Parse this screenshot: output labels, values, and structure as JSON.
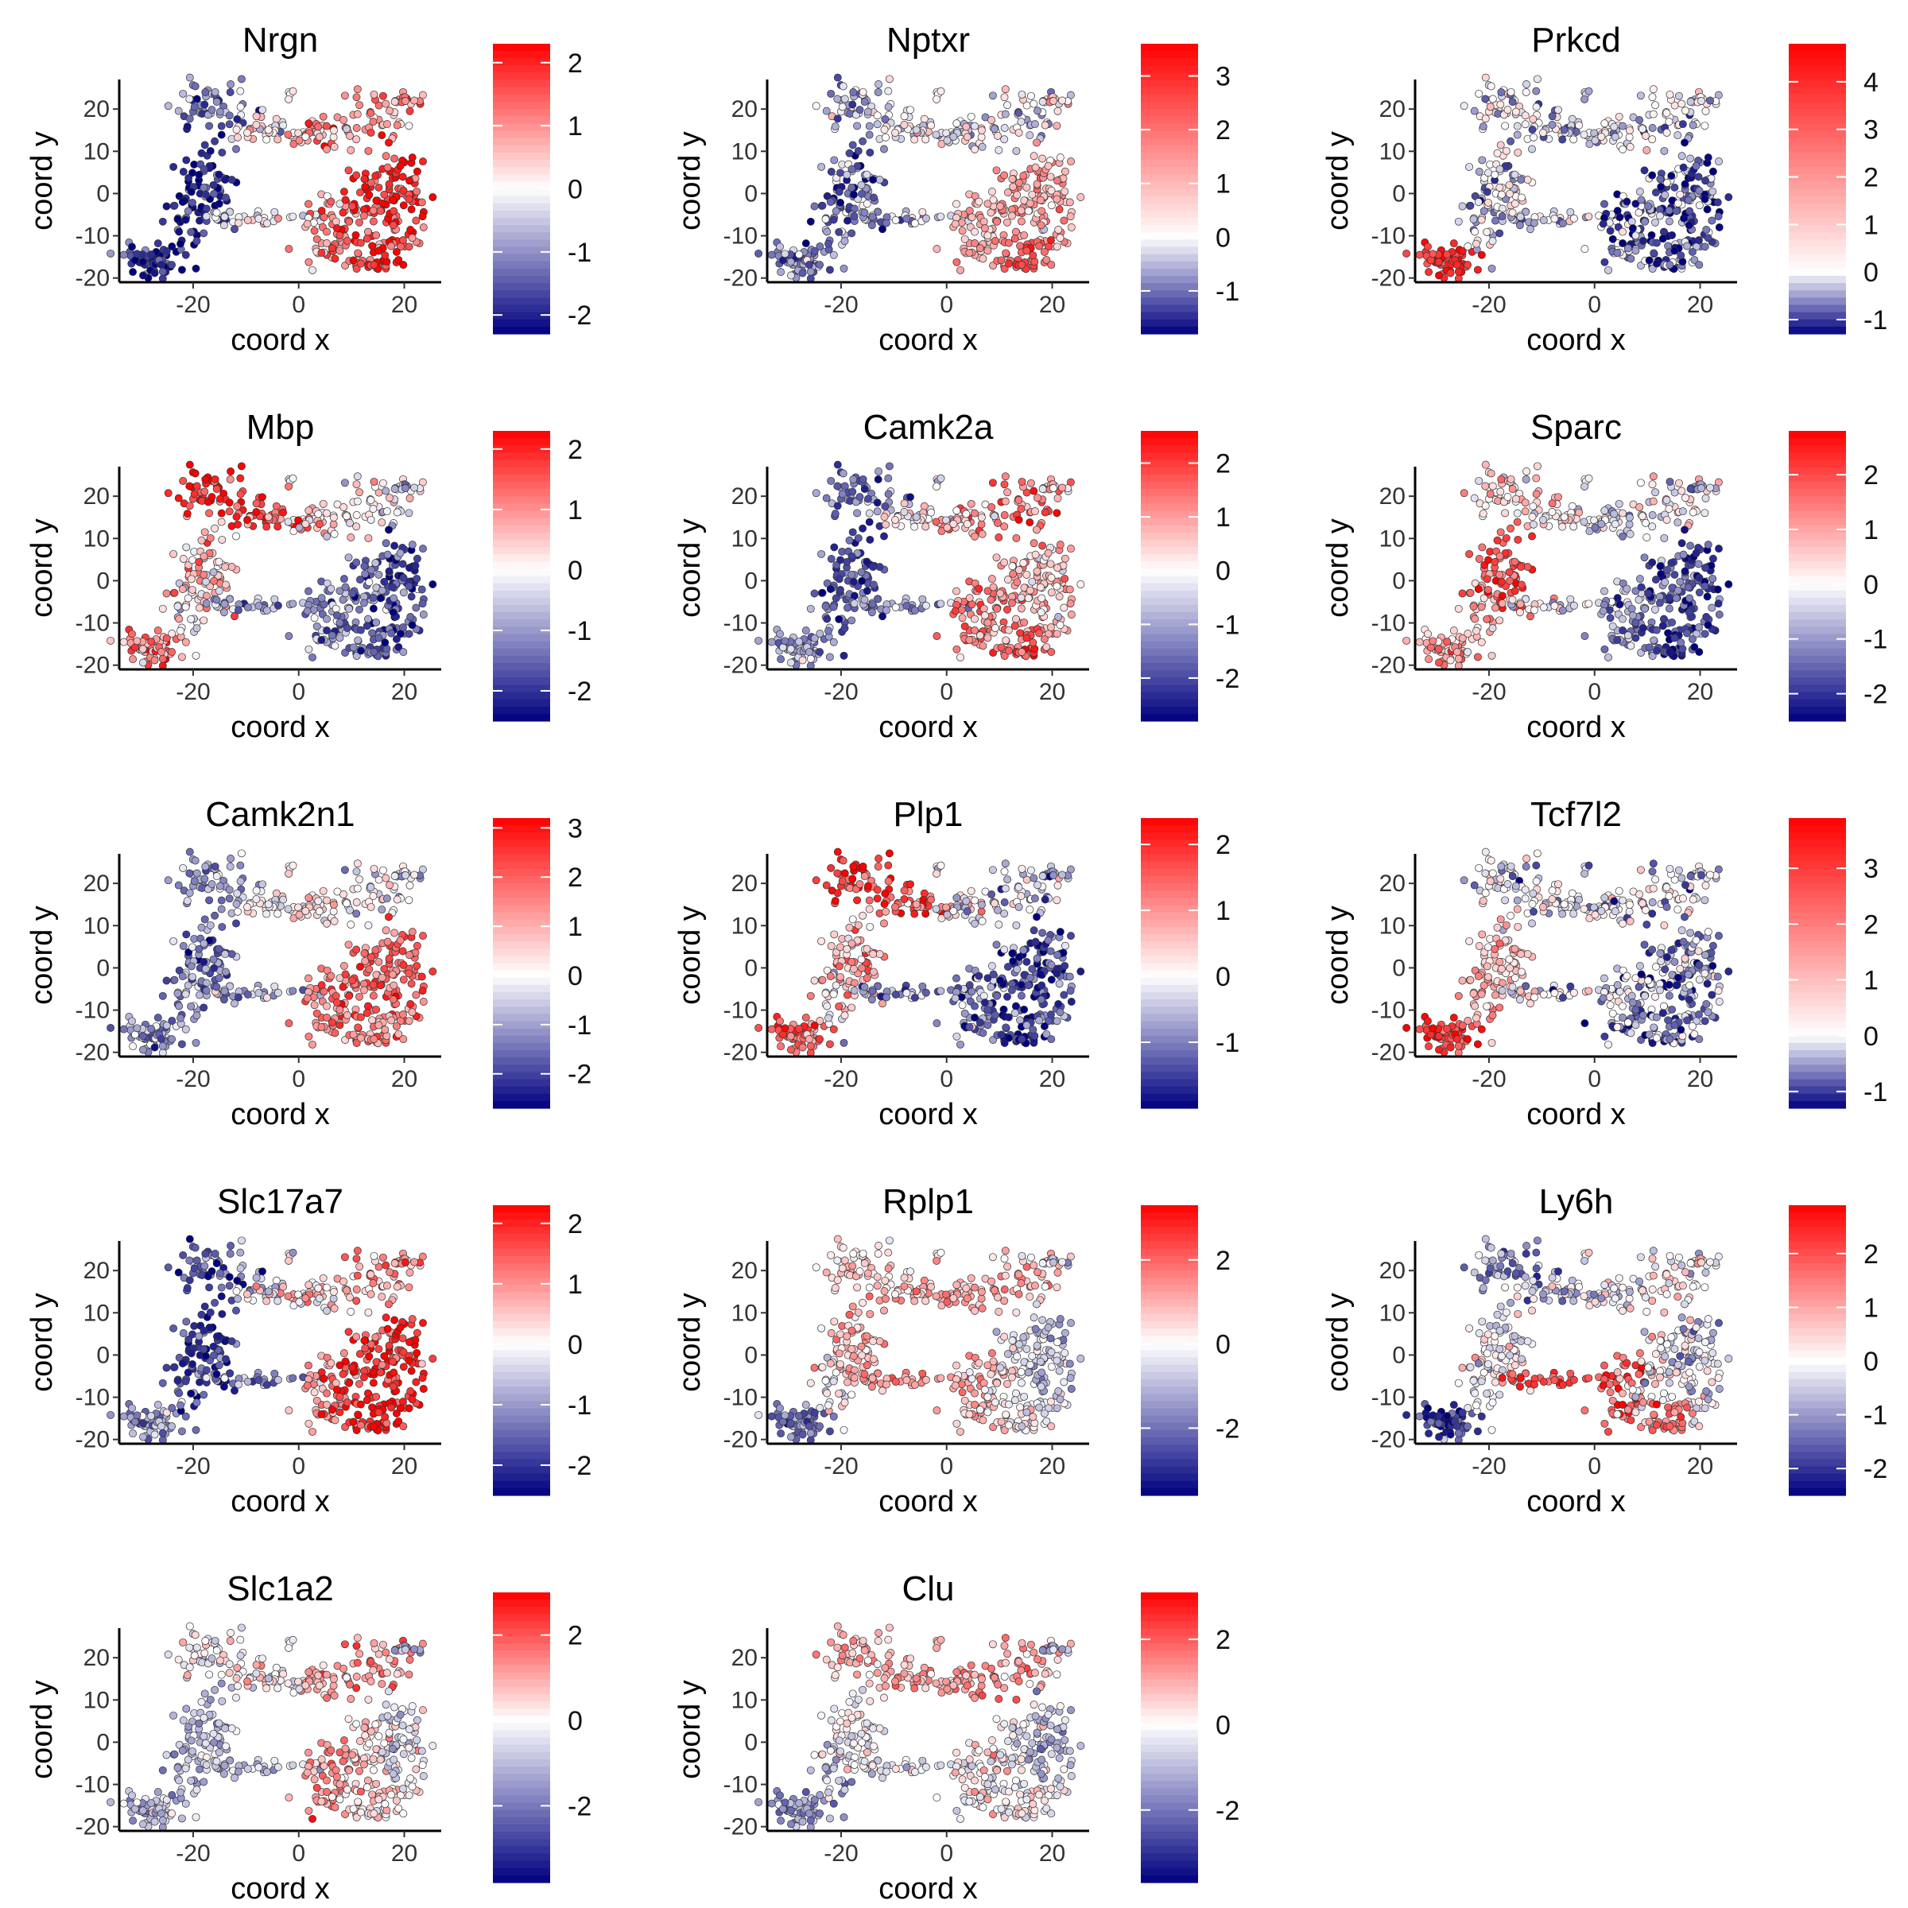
{
  "figure": {
    "panels": [
      {
        "gene": "Nrgn",
        "scale": [
          -2.3,
          2.3
        ],
        "ticks": [
          -2,
          -1,
          0,
          1,
          2
        ]
      },
      {
        "gene": "Nptxr",
        "scale": [
          -1.8,
          3.6
        ],
        "ticks": [
          -1,
          0,
          1,
          2,
          3
        ]
      },
      {
        "gene": "Prkcd",
        "scale": [
          -1.3,
          4.8
        ],
        "ticks": [
          -1,
          0,
          1,
          2,
          3,
          4
        ]
      },
      {
        "gene": "Mbp",
        "scale": [
          -2.5,
          2.3
        ],
        "ticks": [
          -2,
          -1,
          0,
          1,
          2
        ]
      },
      {
        "gene": "Camk2a",
        "scale": [
          -2.8,
          2.6
        ],
        "ticks": [
          -2,
          -1,
          0,
          1,
          2
        ]
      },
      {
        "gene": "Sparc",
        "scale": [
          -2.5,
          2.8
        ],
        "ticks": [
          -2,
          -1,
          0,
          1,
          2
        ]
      },
      {
        "gene": "Camk2n1",
        "scale": [
          -2.7,
          3.2
        ],
        "ticks": [
          -2,
          -1,
          0,
          1,
          2,
          3
        ]
      },
      {
        "gene": "Plp1",
        "scale": [
          -2.0,
          2.4
        ],
        "ticks": [
          -1,
          0,
          1,
          2
        ]
      },
      {
        "gene": "Tcf7l2",
        "scale": [
          -1.3,
          3.9
        ],
        "ticks": [
          -1,
          0,
          1,
          2,
          3
        ]
      },
      {
        "gene": "Slc17a7",
        "scale": [
          -2.5,
          2.3
        ],
        "ticks": [
          -2,
          -1,
          0,
          1,
          2
        ]
      },
      {
        "gene": "Rplp1",
        "scale": [
          -3.6,
          3.3
        ],
        "ticks": [
          -2,
          0,
          2
        ]
      },
      {
        "gene": "Ly6h",
        "scale": [
          -2.5,
          2.9
        ],
        "ticks": [
          -2,
          -1,
          0,
          1,
          2
        ]
      },
      {
        "gene": "Slc1a2",
        "scale": [
          -3.8,
          3.0
        ],
        "ticks": [
          -2,
          0,
          2
        ]
      },
      {
        "gene": "Clu",
        "scale": [
          -3.7,
          3.1
        ],
        "ticks": [
          -2,
          0,
          2
        ]
      }
    ]
  },
  "chart_data": {
    "type": "scatter",
    "xlabel": "coord x",
    "ylabel": "coord y",
    "xlim": [
      -34,
      27
    ],
    "ylim": [
      -21,
      27
    ],
    "xticks": [
      -20,
      0,
      20
    ],
    "yticks": [
      -20,
      -10,
      0,
      10,
      20
    ],
    "colors": {
      "low": "#00007F",
      "mid": "#FFFFFF",
      "high": "#FF0000",
      "point_border": "#333333"
    },
    "grid": false,
    "legend": "right of each panel (continuous colorbar)"
  }
}
